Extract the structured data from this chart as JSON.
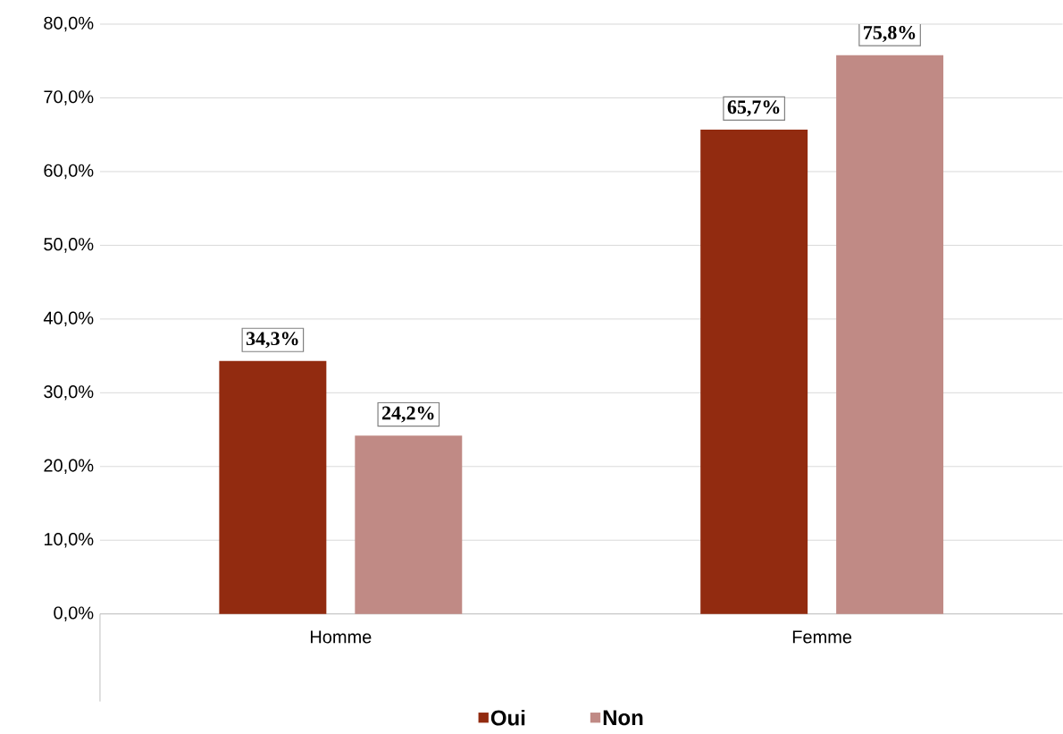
{
  "chart_data": {
    "type": "bar",
    "categories": [
      "Homme",
      "Femme"
    ],
    "series": [
      {
        "name": "Oui",
        "color": "#922b10",
        "values": [
          34.3,
          65.7
        ],
        "value_labels": [
          "34,3%",
          "65,7%"
        ]
      },
      {
        "name": "Non",
        "color": "#c08a85",
        "values": [
          24.2,
          75.8
        ],
        "value_labels": [
          "24,2%",
          "75,8%"
        ]
      }
    ],
    "ylim": [
      0,
      80
    ],
    "yticks": [
      {
        "value": 0,
        "label": "0,0%"
      },
      {
        "value": 10,
        "label": "10,0%"
      },
      {
        "value": 20,
        "label": "20,0%"
      },
      {
        "value": 30,
        "label": "30,0%"
      },
      {
        "value": 40,
        "label": "40,0%"
      },
      {
        "value": 50,
        "label": "50,0%"
      },
      {
        "value": 60,
        "label": "60,0%"
      },
      {
        "value": 70,
        "label": "70,0%"
      },
      {
        "value": 80,
        "label": "80,0%"
      }
    ],
    "grid": "y",
    "legend": "bottom"
  }
}
